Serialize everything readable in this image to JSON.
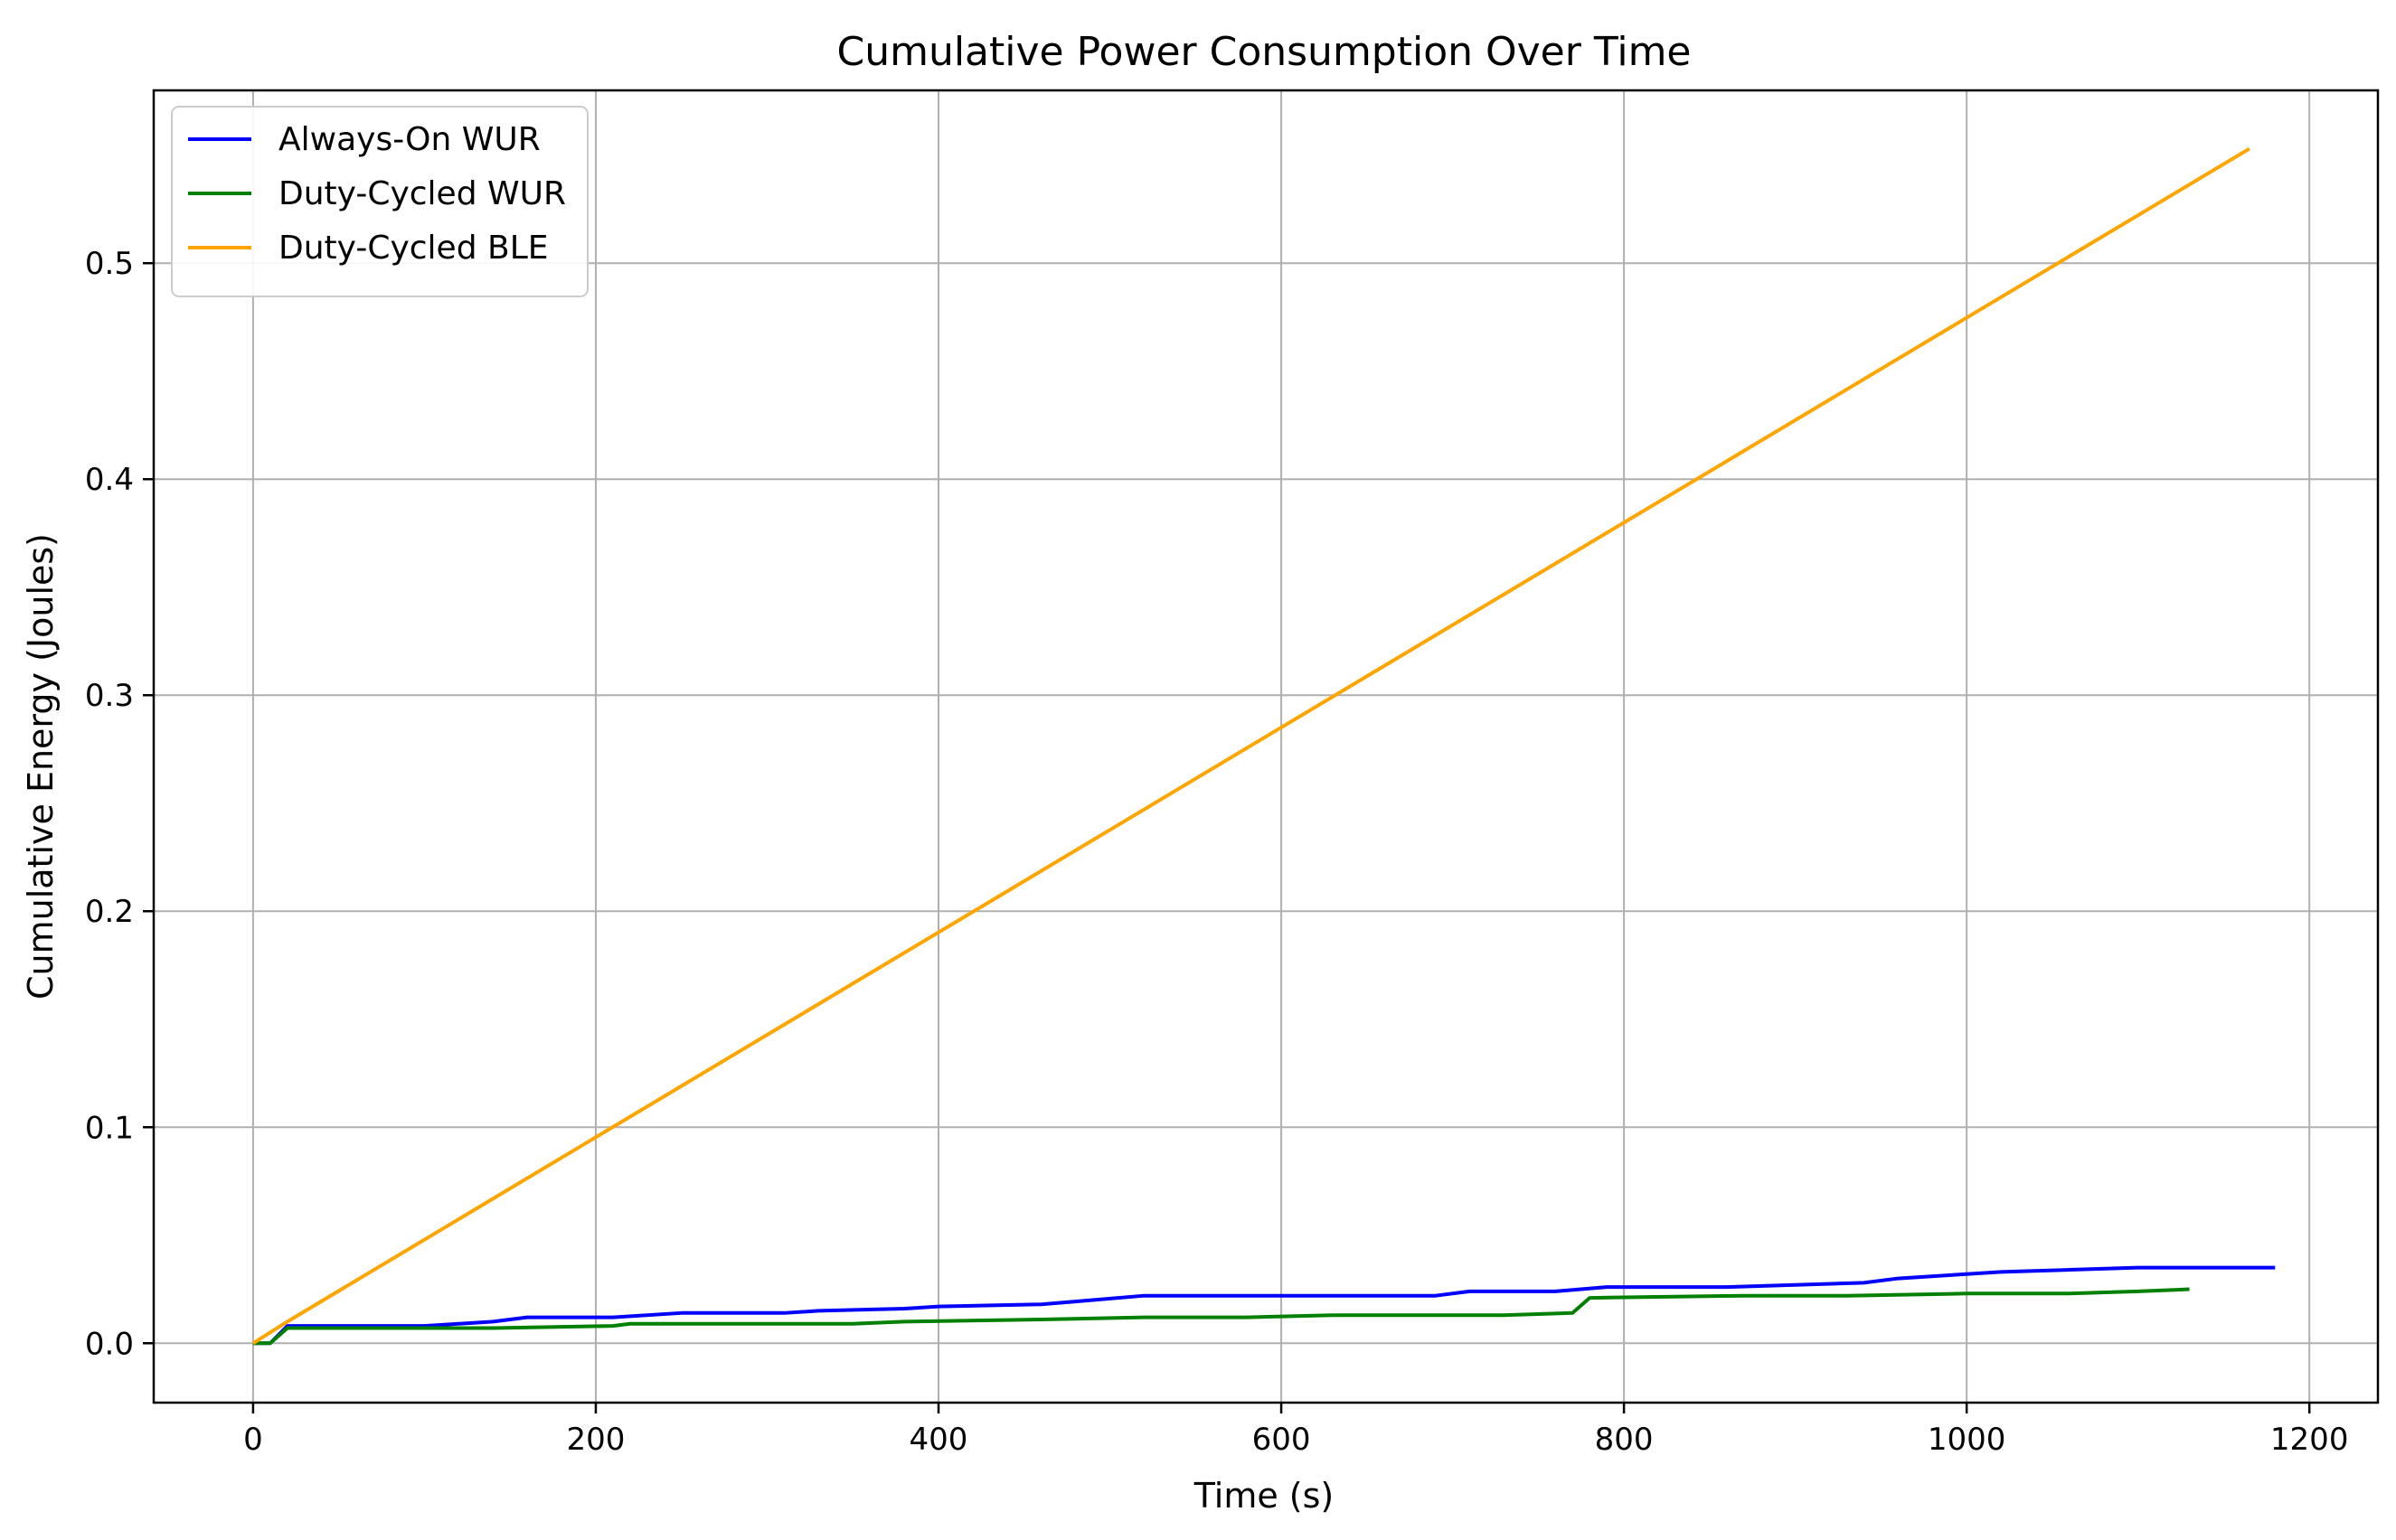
{
  "chart_data": {
    "type": "line",
    "title": "Cumulative Power Consumption Over Time",
    "xlabel": "Time (s)",
    "ylabel": "Cumulative Energy (Joules)",
    "xlim": [
      -58,
      1240
    ],
    "ylim": [
      -0.0275,
      0.58
    ],
    "xticks": [
      0,
      200,
      400,
      600,
      800,
      1000,
      1200
    ],
    "xtick_labels": [
      "0",
      "200",
      "400",
      "600",
      "800",
      "1000",
      "1200"
    ],
    "yticks": [
      0.0,
      0.1,
      0.2,
      0.3,
      0.4,
      0.5
    ],
    "ytick_labels": [
      "0.0",
      "0.1",
      "0.2",
      "0.3",
      "0.4",
      "0.5"
    ],
    "grid": true,
    "legend_position": "top-left",
    "series": [
      {
        "name": "Always-On WUR",
        "color": "#0000ff",
        "x": [
          0,
          5,
          10,
          20,
          100,
          140,
          160,
          210,
          250,
          310,
          330,
          380,
          400,
          460,
          490,
          520,
          600,
          690,
          710,
          760,
          790,
          860,
          940,
          960,
          1000,
          1020,
          1060,
          1100,
          1180
        ],
        "y": [
          0.0,
          0.0,
          0.0,
          0.008,
          0.008,
          0.01,
          0.012,
          0.012,
          0.014,
          0.014,
          0.015,
          0.016,
          0.017,
          0.018,
          0.02,
          0.022,
          0.022,
          0.022,
          0.024,
          0.024,
          0.026,
          0.026,
          0.028,
          0.03,
          0.032,
          0.033,
          0.034,
          0.035,
          0.035
        ]
      },
      {
        "name": "Duty-Cycled WUR",
        "color": "#008000",
        "x": [
          0,
          5,
          10,
          20,
          140,
          210,
          220,
          350,
          380,
          460,
          520,
          580,
          630,
          700,
          730,
          770,
          780,
          870,
          930,
          1000,
          1060,
          1100,
          1130
        ],
        "y": [
          0.0,
          0.0,
          0.0,
          0.007,
          0.007,
          0.008,
          0.009,
          0.009,
          0.01,
          0.011,
          0.012,
          0.012,
          0.013,
          0.013,
          0.013,
          0.014,
          0.021,
          0.022,
          0.022,
          0.023,
          0.023,
          0.024,
          0.025
        ]
      },
      {
        "name": "Duty-Cycled BLE",
        "color": "#ffa500",
        "x": [
          0,
          20,
          1165
        ],
        "y": [
          0.0,
          0.01,
          0.553
        ]
      }
    ]
  }
}
